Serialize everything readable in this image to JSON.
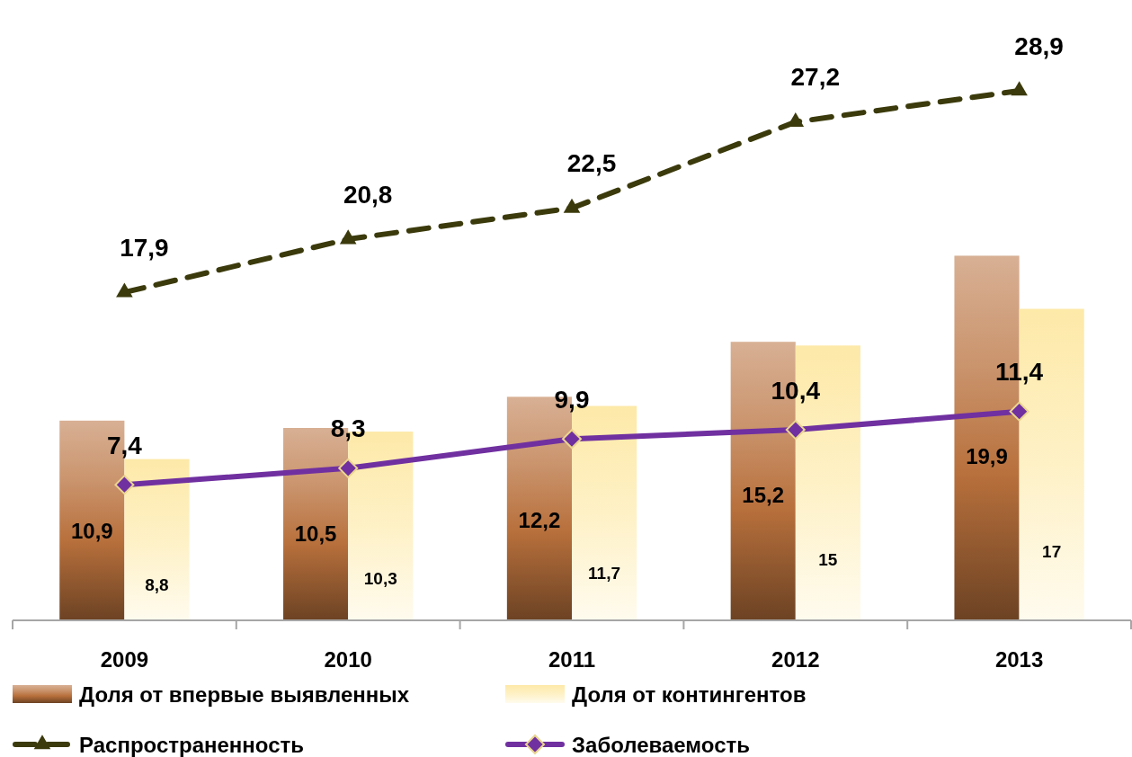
{
  "chart_data": {
    "type": "bar",
    "categories": [
      "2009",
      "2010",
      "2011",
      "2012",
      "2013"
    ],
    "series": [
      {
        "name": "Доля от впервые выявленных",
        "color": "#b8703c",
        "values": [
          10.9,
          10.5,
          12.2,
          15.2,
          19.9
        ],
        "value_labels": [
          "10,9",
          "10,5",
          "12,2",
          "15,2",
          "19,9"
        ]
      },
      {
        "name": "Доля от контингентов",
        "color": "#fde9a8",
        "values": [
          8.8,
          10.3,
          11.7,
          15,
          17
        ],
        "value_labels": [
          "8,8",
          "10,3",
          "11,7",
          "15",
          "17"
        ]
      },
      {
        "name": "Распространенность",
        "type": "line",
        "color": "#3b3a0c",
        "marker": "triangle",
        "line_style": "dashed",
        "values": [
          17.9,
          20.8,
          22.5,
          27.2,
          28.9
        ],
        "value_labels": [
          "17,9",
          "20,8",
          "22,5",
          "27,2",
          "28,9"
        ]
      },
      {
        "name": "Заболеваемость",
        "type": "line",
        "color": "#7030a0",
        "marker": "diamond",
        "line_style": "solid",
        "values": [
          7.4,
          8.3,
          9.9,
          10.4,
          11.4
        ],
        "value_labels": [
          "7,4",
          "8,3",
          "9,9",
          "10,4",
          "11,4"
        ]
      }
    ],
    "tick_labels": "x",
    "legend": "bottom"
  }
}
